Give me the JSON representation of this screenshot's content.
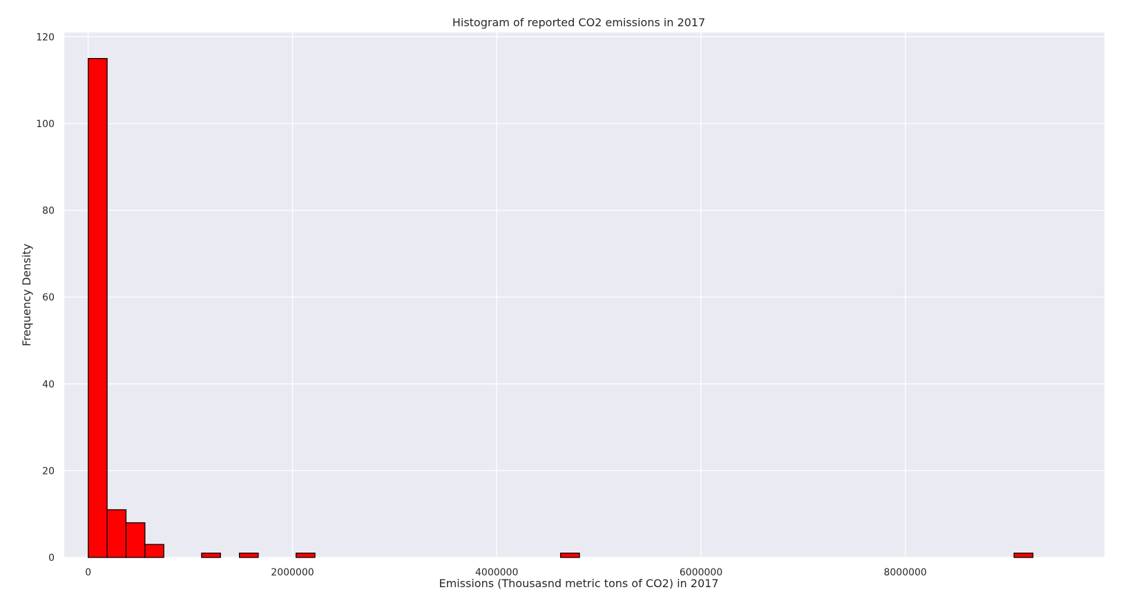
{
  "chart_data": {
    "type": "bar",
    "title": "Histogram of reported CO2 emissions in 2017",
    "xlabel": "Emissions (Thousasnd metric tons of CO2) in 2017",
    "ylabel": "Frequency Density",
    "xlim": [
      -235000,
      9950000
    ],
    "ylim": [
      0,
      121
    ],
    "xticks": [
      0,
      2000000,
      4000000,
      6000000,
      8000000
    ],
    "xtick_labels": [
      "0",
      "2000000",
      "4000000",
      "6000000",
      "8000000"
    ],
    "yticks": [
      0,
      20,
      40,
      60,
      80,
      100,
      120
    ],
    "ytick_labels": [
      "0",
      "20",
      "40",
      "60",
      "80",
      "100",
      "120"
    ],
    "grid": true,
    "bin_width": 185000,
    "bins": [
      {
        "x0": 0,
        "x1": 185000,
        "count": 115
      },
      {
        "x0": 185000,
        "x1": 370000,
        "count": 11
      },
      {
        "x0": 370000,
        "x1": 555000,
        "count": 8
      },
      {
        "x0": 555000,
        "x1": 740000,
        "count": 3
      },
      {
        "x0": 1110000,
        "x1": 1295000,
        "count": 1
      },
      {
        "x0": 1480000,
        "x1": 1665000,
        "count": 1
      },
      {
        "x0": 2035000,
        "x1": 2220000,
        "count": 1
      },
      {
        "x0": 4625000,
        "x1": 4810000,
        "count": 1
      },
      {
        "x0": 9065000,
        "x1": 9250000,
        "count": 1
      }
    ],
    "colors": {
      "bar_fill": "#ff0000",
      "bar_edge": "#000000",
      "plot_background": "#eaeaf2",
      "grid": "#ffffff"
    }
  }
}
